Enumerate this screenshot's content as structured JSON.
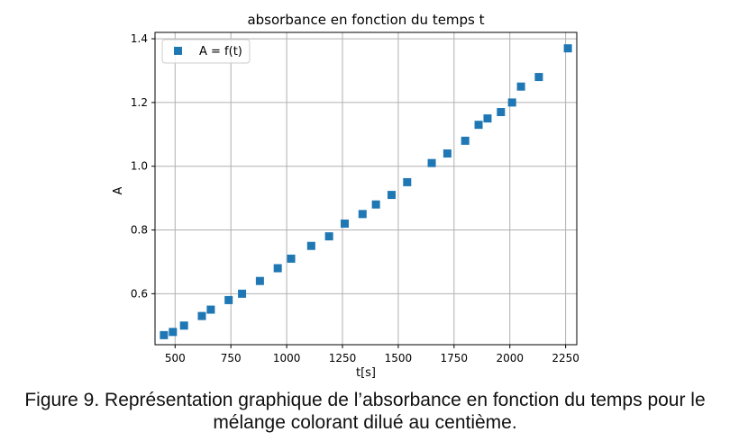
{
  "chart_data": {
    "type": "scatter",
    "title": "absorbance en fonction du temps t",
    "xlabel": "t[s]",
    "ylabel": "A",
    "xlim": [
      410,
      2300
    ],
    "ylim": [
      0.44,
      1.42
    ],
    "xticks": [
      500,
      750,
      1000,
      1250,
      1500,
      1750,
      2000,
      2250
    ],
    "yticks": [
      0.6,
      0.8,
      1.0,
      1.2,
      1.4
    ],
    "ytick_labels": [
      "0.6",
      "0.8",
      "1.0",
      "1.2",
      "1.4"
    ],
    "grid": true,
    "legend_position": "top-left",
    "series": [
      {
        "name": "A = f(t)",
        "color": "#1f77b4",
        "marker": "square",
        "x": [
          450,
          490,
          540,
          620,
          660,
          740,
          800,
          880,
          960,
          1020,
          1110,
          1190,
          1260,
          1340,
          1400,
          1470,
          1540,
          1650,
          1720,
          1800,
          1860,
          1900,
          1960,
          2010,
          2050,
          2130,
          2260
        ],
        "y": [
          0.47,
          0.48,
          0.5,
          0.53,
          0.55,
          0.58,
          0.6,
          0.64,
          0.68,
          0.71,
          0.75,
          0.78,
          0.82,
          0.85,
          0.88,
          0.91,
          0.95,
          1.01,
          1.04,
          1.08,
          1.13,
          1.15,
          1.17,
          1.2,
          1.25,
          1.28,
          1.37
        ]
      }
    ]
  },
  "caption": {
    "line1": "Figure 9. Représentation graphique de l’absorbance en fonction du temps pour le",
    "line2": "mélange colorant dilué au centième."
  }
}
